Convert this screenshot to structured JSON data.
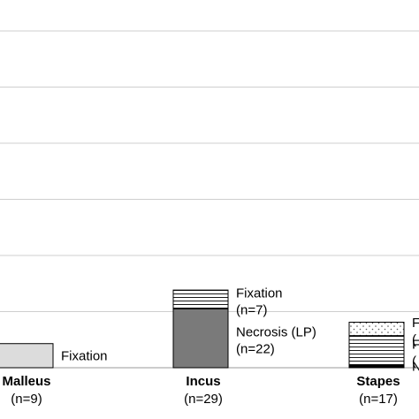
{
  "chart_data": {
    "type": "bar",
    "stacked": true,
    "grid": true,
    "ylim": [
      0,
      30
    ],
    "categories": [
      {
        "name": "Malleus",
        "n_label": "(n=9)",
        "total": 9,
        "segments": [
          {
            "label": "Fixation",
            "count_label": "",
            "value": 9,
            "pattern": "light"
          }
        ]
      },
      {
        "name": "Incus",
        "n_label": "(n=29)",
        "total": 29,
        "segments": [
          {
            "label": "Necrosis (LP)",
            "count_label": "(n=22)",
            "value": 22,
            "pattern": "dark"
          },
          {
            "label": "Fixation",
            "count_label": "(n=7)",
            "value": 7,
            "pattern": "hlines"
          }
        ]
      },
      {
        "name": "Stapes",
        "n_label": "(n=17)",
        "total": 17,
        "segments": [
          {
            "label": "N",
            "count_label": "",
            "value": 1,
            "pattern": "black"
          },
          {
            "label": "F",
            "count_label": "(",
            "value": 11,
            "pattern": "hlines"
          },
          {
            "label": "F",
            "count_label": "(",
            "value": 5,
            "pattern": "dots"
          }
        ]
      }
    ],
    "colors": {
      "light": "#dcdcdc",
      "dark": "#7a7a7a",
      "black": "#000000",
      "hlines_bg": "#ffffff",
      "hlines_line": "#000000",
      "dots_bg": "#ffffff",
      "dots_dot": "#555555",
      "grid": "#cfcfcf",
      "axis": "#999999"
    }
  }
}
